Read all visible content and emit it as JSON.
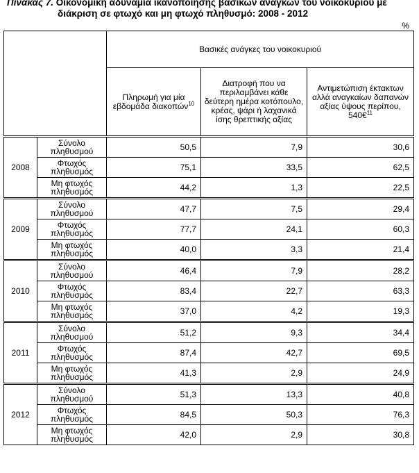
{
  "title": {
    "lead": "Πίνακας 7.",
    "text": "Οικονομική αδυναμία ικανοποίησης βασικών αναγκών του νοικοκυριού με",
    "line2": "διάκριση σε φτωχό και μη φτωχό πληθυσμό: 2008 - 2012"
  },
  "unit": "%",
  "header": {
    "group": "Βασικές ανάγκες του νοικοκυριού",
    "col1": "Πληρωμή για μία εβδομάδα διακοπών",
    "col1_sup": "10",
    "col2": "Διατροφή που να περιλαμβάνει κάθε δεύτερη ημέρα κοτόπουλο, κρέας, ψάρι ή λαχανικά ίσης θρεπτικής αξίας",
    "col3": "Αντιμετώπιση έκτακτων αλλά αναγκαίων δαπανών αξίας ύψους περίπου, 540€",
    "col3_sup": "11"
  },
  "years": [
    {
      "year": "2008",
      "rows": [
        {
          "label": "Σύνολο πληθυσμού",
          "v1": "50,5",
          "v2": "7,9",
          "v3": "30,6"
        },
        {
          "label": "Φτωχός πληθυσμός",
          "v1": "75,1",
          "v2": "33,5",
          "v3": "62,5"
        },
        {
          "label": "Μη φτωχός πληθυσμός",
          "v1": "44,2",
          "v2": "1,3",
          "v3": "22,5"
        }
      ]
    },
    {
      "year": "2009",
      "rows": [
        {
          "label": "Σύνολο πληθυσμού",
          "v1": "47,7",
          "v2": "7,5",
          "v3": "29,4"
        },
        {
          "label": "Φτωχός πληθυσμός",
          "v1": "77,7",
          "v2": "24,1",
          "v3": "60,3"
        },
        {
          "label": "Μη φτωχός πληθυσμός",
          "v1": "40,0",
          "v2": "3,3",
          "v3": "21,4"
        }
      ]
    },
    {
      "year": "2010",
      "rows": [
        {
          "label": "Σύνολο πληθυσμού",
          "v1": "46,4",
          "v2": "7,9",
          "v3": "28,2"
        },
        {
          "label": "Φτωχός πληθυσμός",
          "v1": "83,4",
          "v2": "22,7",
          "v3": "63,3"
        },
        {
          "label": "Μη φτωχός πληθυσμός",
          "v1": "37,0",
          "v2": "4,2",
          "v3": "19,3"
        }
      ]
    },
    {
      "year": "2011",
      "rows": [
        {
          "label": "Σύνολο πληθυσμού",
          "v1": "51,2",
          "v2": "9,3",
          "v3": "34,4"
        },
        {
          "label": "Φτωχός πληθυσμός",
          "v1": "87,4",
          "v2": "42,7",
          "v3": "69,5"
        },
        {
          "label": "Μη φτωχός πληθυσμός",
          "v1": "41,3",
          "v2": "2,9",
          "v3": "24,9"
        }
      ]
    },
    {
      "year": "2012",
      "rows": [
        {
          "label": "Σύνολο πληθυσμού",
          "v1": "51,3",
          "v2": "13,3",
          "v3": "40,8"
        },
        {
          "label": "Φτωχός πληθυσμός",
          "v1": "84,5",
          "v2": "50,3",
          "v3": "76,3"
        },
        {
          "label": "Μη φτωχός πληθυσμός",
          "v1": "42,0",
          "v2": "2,9",
          "v3": "30,8"
        }
      ]
    }
  ]
}
